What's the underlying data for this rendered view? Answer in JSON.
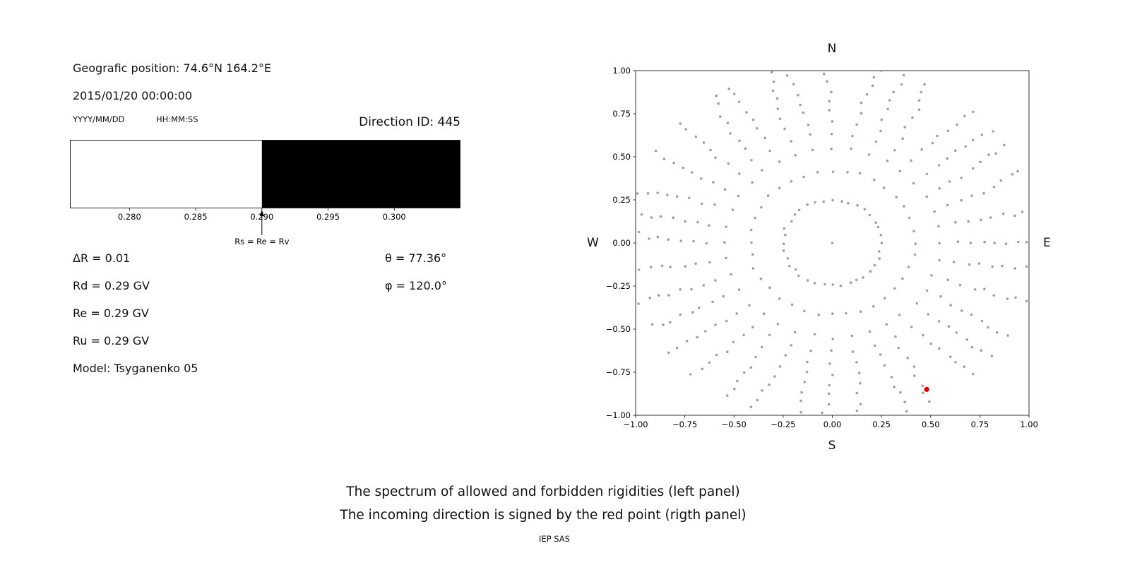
{
  "header": {
    "geo_position": "Geografic position: 74.6°N 164.2°E",
    "datetime": "2015/01/20 00:00:00",
    "date_format_label": "YYYY/MM/DD",
    "time_format_label": "HH:MM:SS",
    "direction_id": "Direction ID: 445"
  },
  "left_panel": {
    "delta_r": "ΔR = 0.01",
    "rd": "Rd = 0.29 GV",
    "re": "Re = 0.29 GV",
    "ru": "Ru = 0.29 GV",
    "model": "Model: Tsyganenko 05",
    "theta": "θ = 77.36°",
    "phi": "φ = 120.0°"
  },
  "caption": {
    "line1": "The spectrum of allowed and forbidden rigidities (left panel)",
    "line2": "The incoming direction is signed by the red point (rigth panel)",
    "credit": "IEP SAS"
  },
  "chart_data": [
    {
      "type": "bar",
      "panel": "left-rigidity-spectrum",
      "x_range": [
        0.2755,
        0.305
      ],
      "x_ticks": [
        0.28,
        0.285,
        0.29,
        0.295,
        0.3
      ],
      "segments": [
        {
          "label": "allowed",
          "from": 0.2755,
          "to": 0.29,
          "color": "#ffffff"
        },
        {
          "label": "forbidden",
          "from": 0.29,
          "to": 0.305,
          "color": "#000000"
        }
      ],
      "annotation": {
        "text": "Rs = Re = Rv",
        "x": 0.29
      }
    },
    {
      "type": "scatter",
      "panel": "right-incoming-direction-map",
      "xlim": [
        -1.0,
        1.0
      ],
      "ylim": [
        -1.0,
        1.0
      ],
      "x_ticks": [
        -1.0,
        -0.75,
        -0.5,
        -0.25,
        0.0,
        0.25,
        0.5,
        0.75,
        1.0
      ],
      "y_ticks": [
        -1.0,
        -0.75,
        -0.5,
        -0.25,
        0.0,
        0.25,
        0.5,
        0.75,
        1.0
      ],
      "compass": {
        "top": "N",
        "bottom": "S",
        "left": "W",
        "right": "E"
      },
      "grid": false,
      "gray_pattern": {
        "description": "radial spokes of small gray dots with inner ring and center dot",
        "spokes": 36,
        "dots_per_spoke": 10,
        "spoke_r_start": 0.42,
        "spoke_r_end": 1.04,
        "inner_ring_radius": 0.25,
        "inner_ring_dots": 36,
        "center_dot": true,
        "color": "#8f8f8f",
        "seed": 11
      },
      "red_point": {
        "x": 0.48,
        "y": -0.85,
        "color": "#e00000"
      }
    }
  ]
}
